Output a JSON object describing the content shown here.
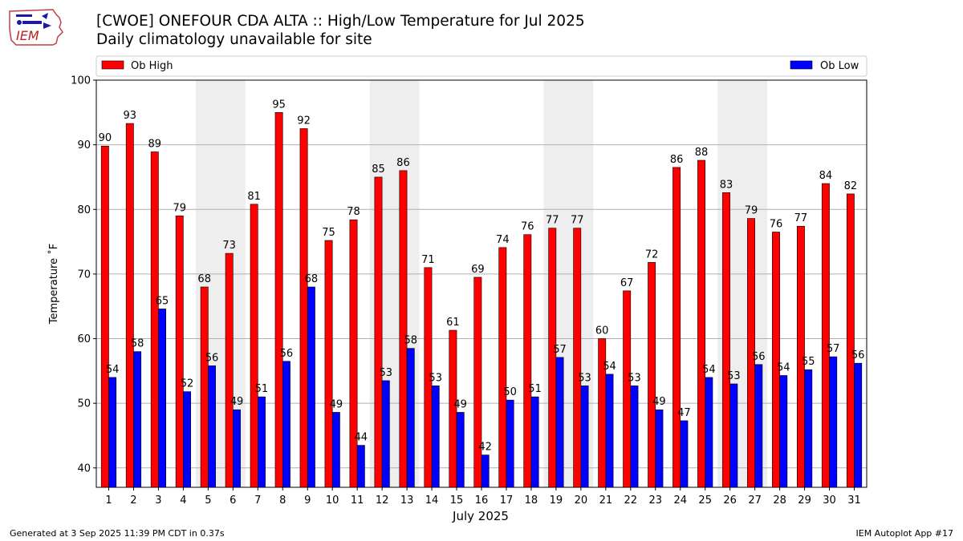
{
  "title": "[CWOE] ONEFOUR CDA  ALTA :: High/Low Temperature for Jul 2025",
  "subtitle": "Daily climatology unavailable for site",
  "footer_left": "Generated at 3 Sep 2025 11:39 PM CDT in 0.37s",
  "footer_right": "IEM Autoplot App #17",
  "logo_text": "IEM",
  "colors": {
    "high": "#ff0000",
    "low": "#0000ff",
    "weekend": "#eeeeee",
    "grid": "#b0b0b0"
  },
  "chart_data": {
    "type": "bar",
    "xlabel": "July 2025",
    "ylabel": "Temperature ˚F",
    "ylim": [
      37,
      100
    ],
    "yticks": [
      40,
      50,
      60,
      70,
      80,
      90,
      100
    ],
    "grid": true,
    "legend": [
      "Ob High",
      "Ob Low"
    ],
    "legend_placement": "top, spanning full width",
    "categories": [
      "1",
      "2",
      "3",
      "4",
      "5",
      "6",
      "7",
      "8",
      "9",
      "10",
      "11",
      "12",
      "13",
      "14",
      "15",
      "16",
      "17",
      "18",
      "19",
      "20",
      "21",
      "22",
      "23",
      "24",
      "25",
      "26",
      "27",
      "28",
      "29",
      "30",
      "31"
    ],
    "weekend_days": [
      5,
      6,
      12,
      13,
      19,
      20,
      26,
      27
    ],
    "series": [
      {
        "name": "Ob High",
        "values": [
          89.8,
          93.3,
          88.9,
          79.0,
          68.0,
          73.2,
          80.8,
          95.0,
          92.5,
          75.2,
          78.4,
          85.0,
          86.0,
          71.0,
          61.3,
          69.5,
          74.1,
          76.1,
          77.1,
          77.1,
          60.0,
          67.4,
          71.8,
          86.5,
          87.6,
          82.6,
          78.6,
          76.5,
          77.4,
          84.0,
          82.4
        ],
        "labels": [
          "90",
          "93",
          "89",
          "79",
          "68",
          "73",
          "81",
          "95",
          "92",
          "75",
          "78",
          "85",
          "86",
          "71",
          "61",
          "69",
          "74",
          "76",
          "77",
          "77",
          "60",
          "67",
          "72",
          "86",
          "88",
          "83",
          "79",
          "76",
          "77",
          "84",
          "82"
        ]
      },
      {
        "name": "Ob Low",
        "values": [
          54.0,
          58.0,
          64.6,
          51.8,
          55.8,
          49.0,
          51.0,
          56.5,
          68.0,
          48.6,
          43.5,
          53.5,
          58.5,
          52.7,
          48.6,
          42.0,
          50.5,
          51.0,
          57.1,
          52.7,
          54.5,
          52.7,
          49.0,
          47.3,
          54.0,
          53.0,
          56.0,
          54.3,
          55.2,
          57.2,
          56.2
        ],
        "labels": [
          "54",
          "58",
          "65",
          "52",
          "56",
          "49",
          "51",
          "56",
          "68",
          "49",
          "44",
          "53",
          "58",
          "53",
          "49",
          "42",
          "50",
          "51",
          "57",
          "53",
          "54",
          "53",
          "49",
          "47",
          "54",
          "53",
          "56",
          "54",
          "55",
          "57",
          "56"
        ]
      }
    ]
  }
}
